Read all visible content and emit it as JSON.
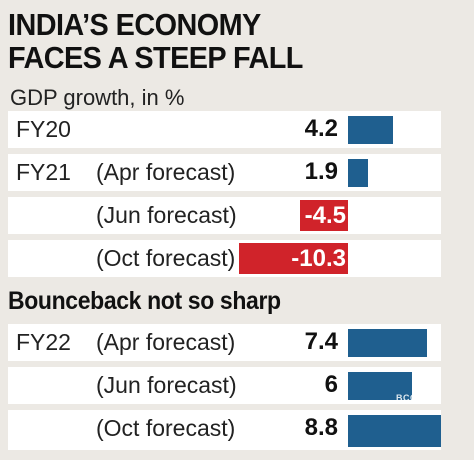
{
  "title_line1": "INDIA’S ECONOMY",
  "title_line2": "FACES A STEEP FALL",
  "subtitle": "GDP growth, in %",
  "section2_title": "Bounceback not so sharp",
  "watermark": "BCCL",
  "colors": {
    "positive_bar": "#1f5f8f",
    "negative_bar": "#d0232a",
    "row_bg": "#ffffff",
    "page_bg": "#ece9e4"
  },
  "chart_data": {
    "type": "bar",
    "title": "INDIA’S ECONOMY FACES A STEEP FALL",
    "subtitle": "GDP growth, in %",
    "orientation": "horizontal",
    "sections": [
      {
        "title": "",
        "rows": [
          {
            "fy": "FY20",
            "forecast": "",
            "value": 4.2,
            "label": "4.2"
          },
          {
            "fy": "FY21",
            "forecast": "(Apr forecast)",
            "value": 1.9,
            "label": "1.9"
          },
          {
            "fy": "",
            "forecast": "(Jun forecast)",
            "value": -4.5,
            "label": "-4.5"
          },
          {
            "fy": "",
            "forecast": "(Oct forecast)",
            "value": -10.3,
            "label": "-10.3"
          }
        ]
      },
      {
        "title": "Bounceback not so sharp",
        "rows": [
          {
            "fy": "FY22",
            "forecast": "(Apr forecast)",
            "value": 7.4,
            "label": "7.4"
          },
          {
            "fy": "",
            "forecast": "(Jun forecast)",
            "value": 6,
            "label": "6"
          },
          {
            "fy": "",
            "forecast": "(Oct forecast)",
            "value": 8.8,
            "label": "8.8"
          }
        ]
      }
    ]
  }
}
